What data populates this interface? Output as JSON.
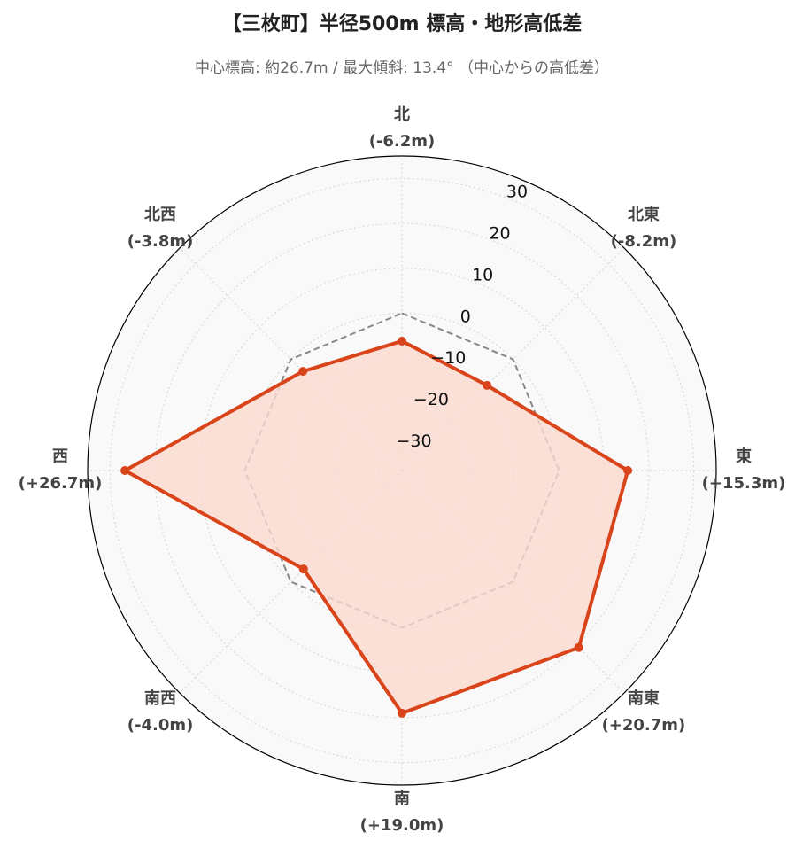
{
  "chart_data": {
    "type": "radar",
    "title": "【三枚町】半径500m 標高・地形高低差",
    "subtitle": "中心標高: 約26.7m / 最大傾斜: 13.4° （中心からの高低差）",
    "categories": [
      "北",
      "北東",
      "東",
      "南東",
      "南",
      "南西",
      "西",
      "北西"
    ],
    "values": [
      -6.2,
      -8.2,
      15.3,
      20.7,
      19.0,
      -4.0,
      26.7,
      -3.8
    ],
    "value_labels": [
      "(-6.2m)",
      "(-8.2m)",
      "(+15.3m)",
      "(+20.7m)",
      "(+19.0m)",
      "(-4.0m)",
      "(+26.7m)",
      "(-3.8m)"
    ],
    "color": "#d9441a",
    "fill": "#fbd9cf",
    "reference": {
      "value": 0,
      "color": "#888888"
    },
    "ylim": [
      -35,
      35
    ],
    "yticks": [
      {
        "value": -30,
        "label": "−30"
      },
      {
        "value": -20,
        "label": "−20"
      },
      {
        "value": -10,
        "label": "−10"
      },
      0,
      10,
      20,
      30
    ],
    "grid": true
  }
}
